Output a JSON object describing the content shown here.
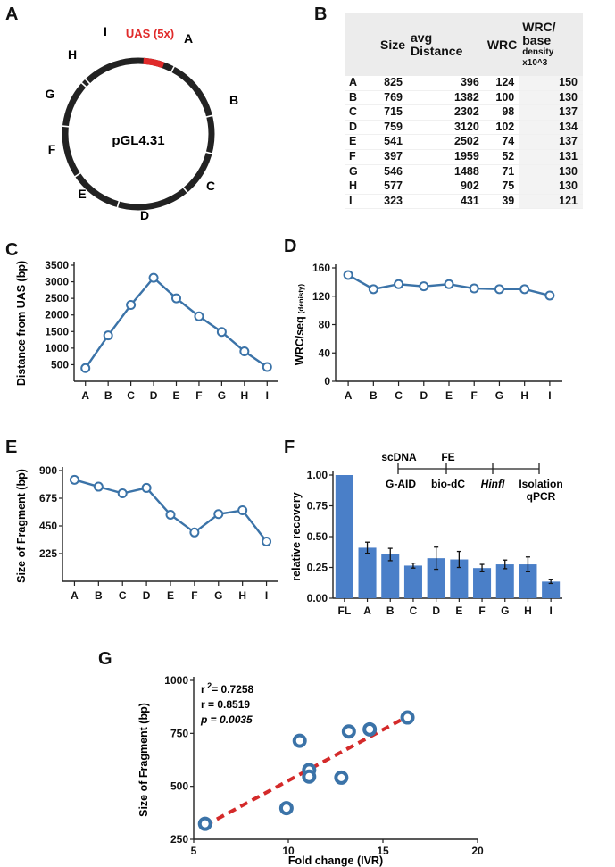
{
  "panels": {
    "a": "A",
    "b": "B",
    "c": "C",
    "d": "D",
    "e": "E",
    "f": "F",
    "g": "G"
  },
  "plasmid": {
    "name": "pGL4.31",
    "uas_label": "UAS (5x)",
    "uas_color": "#e02a2a",
    "segment_labels": [
      "A",
      "B",
      "C",
      "D",
      "E",
      "F",
      "G",
      "H",
      "I"
    ]
  },
  "table": {
    "headers": [
      "Size",
      "avg Distance",
      "WRC",
      "WRC/ base"
    ],
    "header_sub": "density x10^3",
    "rows": [
      {
        "label": "A",
        "size": "825",
        "dist": "396",
        "wrc": "124",
        "wrcbase": "150"
      },
      {
        "label": "B",
        "size": "769",
        "dist": "1382",
        "wrc": "100",
        "wrcbase": "130"
      },
      {
        "label": "C",
        "size": "715",
        "dist": "2302",
        "wrc": "98",
        "wrcbase": "137"
      },
      {
        "label": "D",
        "size": "759",
        "dist": "3120",
        "wrc": "102",
        "wrcbase": "134"
      },
      {
        "label": "E",
        "size": "541",
        "dist": "2502",
        "wrc": "74",
        "wrcbase": "137"
      },
      {
        "label": "F",
        "size": "397",
        "dist": "1959",
        "wrc": "52",
        "wrcbase": "131"
      },
      {
        "label": "G",
        "size": "546",
        "dist": "1488",
        "wrc": "71",
        "wrcbase": "130"
      },
      {
        "label": "H",
        "size": "577",
        "dist": "902",
        "wrc": "75",
        "wrcbase": "130"
      },
      {
        "label": "I",
        "size": "323",
        "dist": "431",
        "wrc": "39",
        "wrcbase": "121"
      }
    ]
  },
  "colors": {
    "series": "#3b73a8",
    "bar": "#4a7fc8",
    "trend": "#d42a2a"
  },
  "chart_data": [
    {
      "id": "C",
      "type": "line",
      "categories": [
        "A",
        "B",
        "C",
        "D",
        "E",
        "F",
        "G",
        "H",
        "I"
      ],
      "values": [
        396,
        1382,
        2302,
        3120,
        2502,
        1959,
        1488,
        902,
        431
      ],
      "ylabel": "Distance from UAS (bp)",
      "yticks": [
        "500",
        "1000",
        "1500",
        "2000",
        "2500",
        "3000",
        "3500"
      ],
      "ylim": [
        0,
        3500
      ]
    },
    {
      "id": "D",
      "type": "line",
      "categories": [
        "A",
        "B",
        "C",
        "D",
        "E",
        "F",
        "G",
        "H",
        "I"
      ],
      "values": [
        150,
        130,
        137,
        134,
        137,
        131,
        130,
        130,
        121
      ],
      "ylabel": "WRC/seq",
      "ylabel_sub": "(denisty)",
      "yticks": [
        "0",
        "40",
        "80",
        "120",
        "160"
      ],
      "ylim": [
        0,
        160
      ]
    },
    {
      "id": "E",
      "type": "line",
      "categories": [
        "A",
        "B",
        "C",
        "D",
        "E",
        "F",
        "G",
        "H",
        "I"
      ],
      "values": [
        825,
        769,
        715,
        759,
        541,
        397,
        546,
        577,
        323
      ],
      "ylabel": "Size of Fragment (bp)",
      "yticks": [
        "225",
        "450",
        "675",
        "900"
      ],
      "ylim": [
        0,
        900
      ]
    },
    {
      "id": "F",
      "type": "bar",
      "categories": [
        "FL",
        "A",
        "B",
        "C",
        "D",
        "E",
        "F",
        "G",
        "H",
        "I"
      ],
      "values": [
        1.0,
        0.41,
        0.355,
        0.265,
        0.325,
        0.315,
        0.245,
        0.275,
        0.275,
        0.135
      ],
      "errors": [
        0,
        0.045,
        0.05,
        0.02,
        0.09,
        0.065,
        0.03,
        0.035,
        0.06,
        0.015
      ],
      "ylabel": "relative recovery",
      "yticks": [
        "0.00",
        "0.25",
        "0.50",
        "0.75",
        "1.00"
      ],
      "ylim": [
        0,
        1.0
      ],
      "workflow": {
        "top": [
          "scDNA",
          "FE"
        ],
        "bottom": [
          "G-AID",
          "bio-dC",
          "HinfI",
          "Isolation",
          "qPCR"
        ]
      }
    },
    {
      "id": "G",
      "type": "scatter",
      "x": [
        16.3,
        14.3,
        13.2,
        10.6,
        11.1,
        11.1,
        12.8,
        9.9,
        5.6
      ],
      "y": [
        825,
        769,
        759,
        715,
        577,
        546,
        541,
        397,
        323
      ],
      "trend": {
        "x": [
          5.6,
          16.3
        ],
        "y": [
          315,
          830
        ]
      },
      "xlabel": "Fold change (IVR)",
      "ylabel": "Size of Fragment (bp)",
      "xticks": [
        "5",
        "10",
        "15",
        "20"
      ],
      "yticks": [
        "250",
        "500",
        "750",
        "1000"
      ],
      "xlim": [
        5,
        20
      ],
      "ylim": [
        250,
        1000
      ],
      "stats": {
        "r2": "2= 0.7258",
        "r2_prefix": "r",
        "r": "r   = 0.8519",
        "p": "p",
        "p_value": "= 0.0035"
      }
    }
  ]
}
